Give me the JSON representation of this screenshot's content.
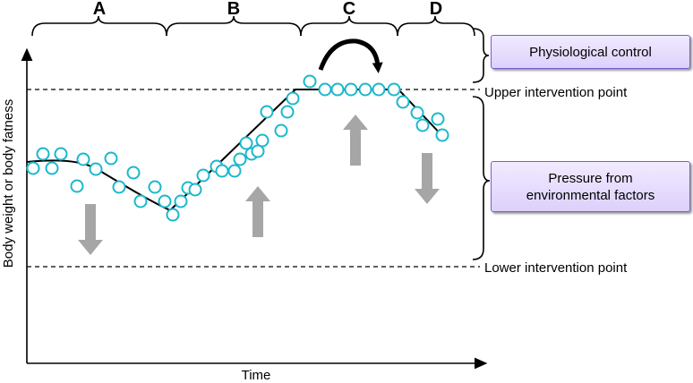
{
  "phases": [
    "A",
    "B",
    "C",
    "D"
  ],
  "axes": {
    "x_label": "Time",
    "y_label": "Body weight or body fatness"
  },
  "reference_lines": {
    "upper": "Upper intervention point",
    "lower": "Lower intervention point"
  },
  "boxes": {
    "physiological": "Physiological control",
    "pressure": "Pressure from environmental factors"
  },
  "colors": {
    "marker_stroke": "#1ab8cc",
    "arrow_fill": "#a6a6a6",
    "box_border": "#7a5ad6",
    "box_fill": "#e6dcfc"
  },
  "arrows": [
    {
      "direction": "down",
      "phase": "A"
    },
    {
      "direction": "up",
      "phase": "B"
    },
    {
      "direction": "up",
      "phase": "C"
    },
    {
      "direction": "down",
      "phase": "D"
    },
    {
      "direction": "clockwise-curve",
      "phase": "C",
      "icon": "curved-arrow-icon"
    }
  ]
}
